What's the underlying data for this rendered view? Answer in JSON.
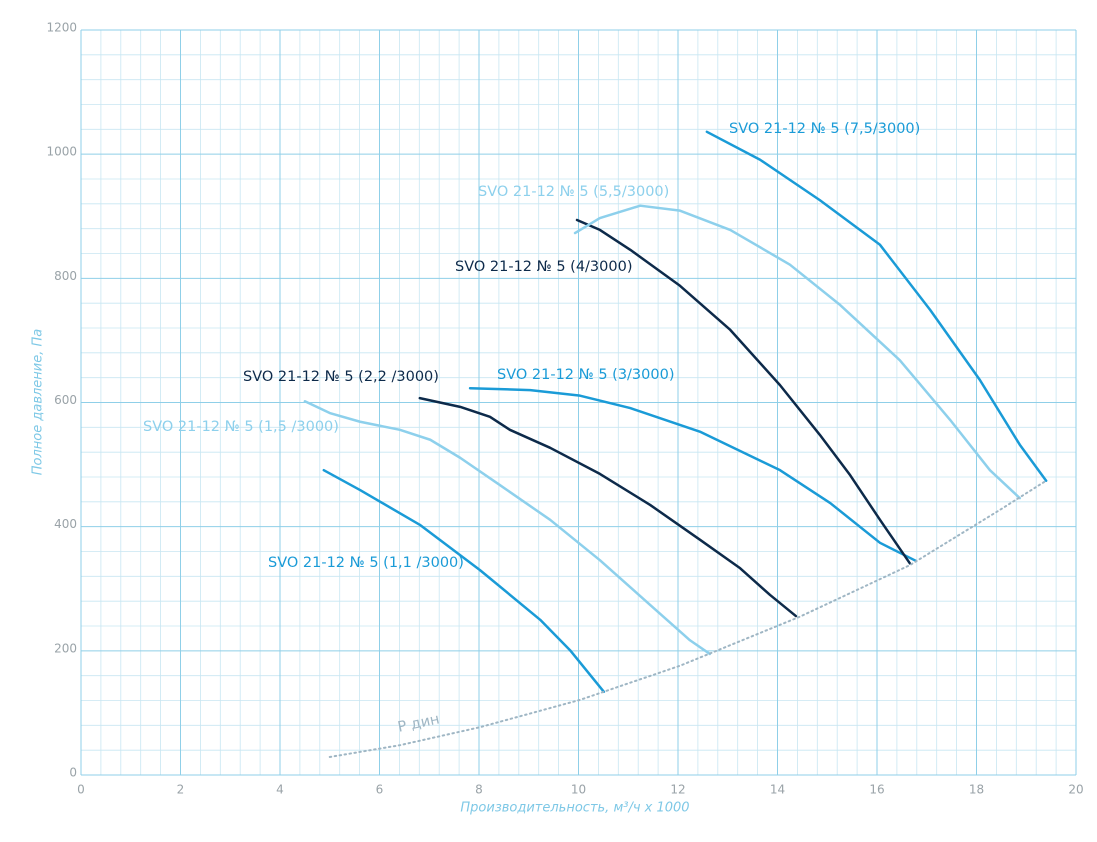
{
  "chart_data": {
    "type": "line",
    "x_label": "Производительность, м³/ч х 1000",
    "y_label": "Полное давление, Па",
    "xlim": [
      0,
      20
    ],
    "ylim": [
      0,
      1200
    ],
    "xticks": [
      0,
      2,
      4,
      6,
      8,
      10,
      12,
      14,
      16,
      18,
      20
    ],
    "yticks": [
      0,
      200,
      400,
      600,
      800,
      1000,
      1200
    ],
    "grid": true,
    "series": [
      {
        "name": "SVO 21-12 № 5 (1,1 /3000)",
        "color": "#1a9bd7",
        "x": [
          4.88,
          5.61,
          6.81,
          8.02,
          9.23,
          9.83,
          10.51
        ],
        "values": [
          491,
          459,
          403,
          330,
          250,
          201,
          134
        ]
      },
      {
        "name": "SVO 21-12 № 5 (1,5 /3000)",
        "color": "#8dd0ec",
        "x": [
          4.5,
          5.0,
          5.61,
          6.41,
          7.02,
          7.62,
          8.42,
          9.43,
          10.43,
          11.44,
          12.24,
          12.64
        ],
        "values": [
          602,
          583,
          569,
          556,
          540,
          511,
          467,
          411,
          346,
          274,
          217,
          195
        ]
      },
      {
        "name": "SVO 21-12 № 5 (2,2 /3000)",
        "color": "#0d2a4a",
        "x": [
          6.81,
          7.62,
          8.22,
          8.62,
          9.43,
          10.43,
          11.44,
          12.44,
          13.25,
          13.85,
          14.37
        ],
        "values": [
          607,
          593,
          577,
          556,
          527,
          485,
          435,
          379,
          333,
          290,
          256
        ]
      },
      {
        "name": "SVO 21-12 № 5 (3/3000)",
        "color": "#1a9bd7",
        "x": [
          7.82,
          9.03,
          10.03,
          11.04,
          12.44,
          14.05,
          15.06,
          16.06,
          16.78
        ],
        "values": [
          623,
          620,
          611,
          591,
          553,
          491,
          438,
          374,
          345
        ]
      },
      {
        "name": "SVO 21-12 № 5 (4/3000)",
        "color": "#0d2a4a",
        "x": [
          9.97,
          10.43,
          11.04,
          12.04,
          13.05,
          14.05,
          14.85,
          15.46,
          16.06,
          16.66
        ],
        "values": [
          894,
          878,
          846,
          788,
          717,
          628,
          548,
          483,
          411,
          341
        ]
      },
      {
        "name": "SVO 21-12 № 5 (5,5/3000)",
        "color": "#8dd0ec",
        "x": [
          9.93,
          10.43,
          11.24,
          12.04,
          13.05,
          14.25,
          15.26,
          16.46,
          17.47,
          18.27,
          18.87
        ],
        "values": [
          873,
          897,
          917,
          909,
          878,
          822,
          757,
          668,
          572,
          491,
          446
        ]
      },
      {
        "name": "SVO 21-12 № 5 (7,5/3000)",
        "color": "#1a9bd7",
        "x": [
          12.58,
          13.65,
          14.85,
          16.06,
          17.07,
          18.07,
          18.87,
          19.4
        ],
        "values": [
          1036,
          991,
          926,
          854,
          749,
          636,
          532,
          474
        ]
      },
      {
        "name": "P дин",
        "color": "#9fb6c4",
        "style": "dotted",
        "x": [
          5.0,
          6.41,
          8.02,
          10.03,
          12.04,
          14.45,
          16.66,
          18.47,
          19.4
        ],
        "values": [
          29,
          48,
          77,
          121,
          176,
          255,
          338,
          427,
          474
        ]
      }
    ]
  }
}
